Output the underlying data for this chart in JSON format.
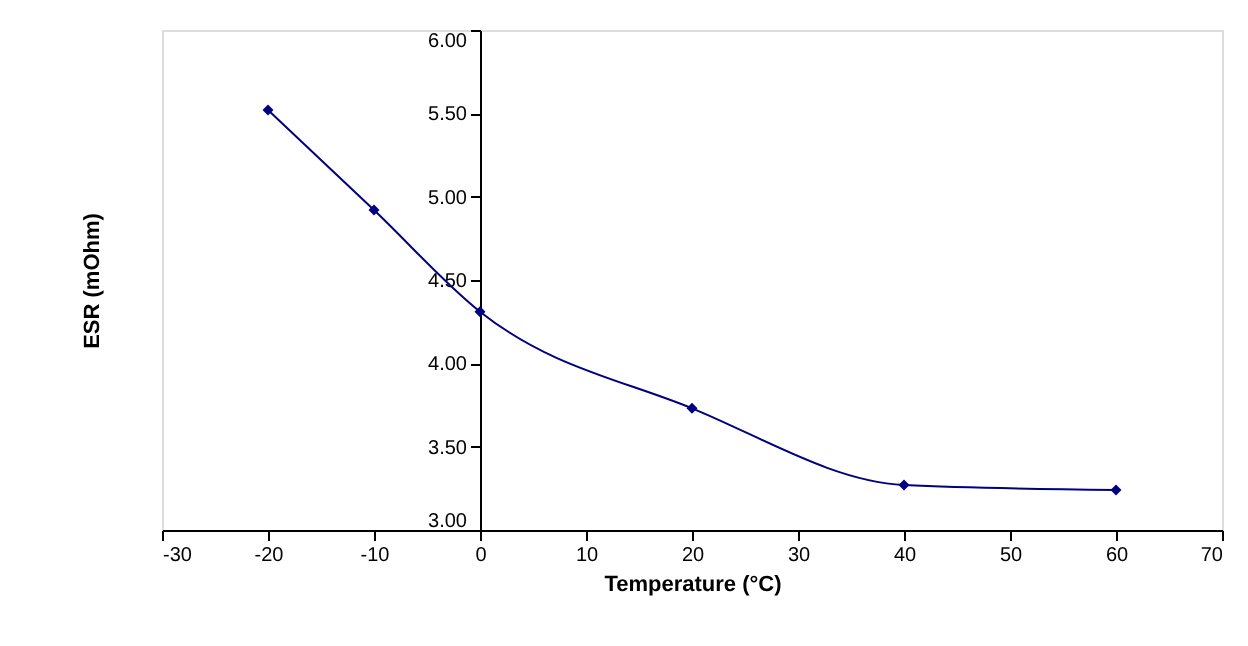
{
  "chart_data": {
    "type": "line",
    "xlabel": "Temperature (°C)",
    "ylabel": "ESR (mOhm)",
    "x": [
      -20,
      -10,
      0,
      20,
      40,
      60
    ],
    "series": [
      {
        "color": "#000080",
        "values": [
          5.52,
          4.92,
          4.31,
          3.73,
          3.27,
          3.24
        ]
      }
    ],
    "xlim": [
      -30,
      70
    ],
    "xticks": [
      -30,
      -20,
      -10,
      0,
      10,
      20,
      30,
      40,
      50,
      60,
      70
    ],
    "ylim": [
      3,
      6
    ],
    "yticks": [
      {
        "value": 3,
        "label": "3.00"
      },
      {
        "value": 3.5,
        "label": "3.50"
      },
      {
        "value": 4,
        "label": "4.00"
      },
      {
        "value": 4.5,
        "label": "4.50"
      },
      {
        "value": 5,
        "label": "5.00"
      },
      {
        "value": 5.5,
        "label": "5.50"
      },
      {
        "value": 6,
        "label": "6.00"
      }
    ],
    "grid": false,
    "marker": "diamond",
    "line_style": "solid"
  }
}
